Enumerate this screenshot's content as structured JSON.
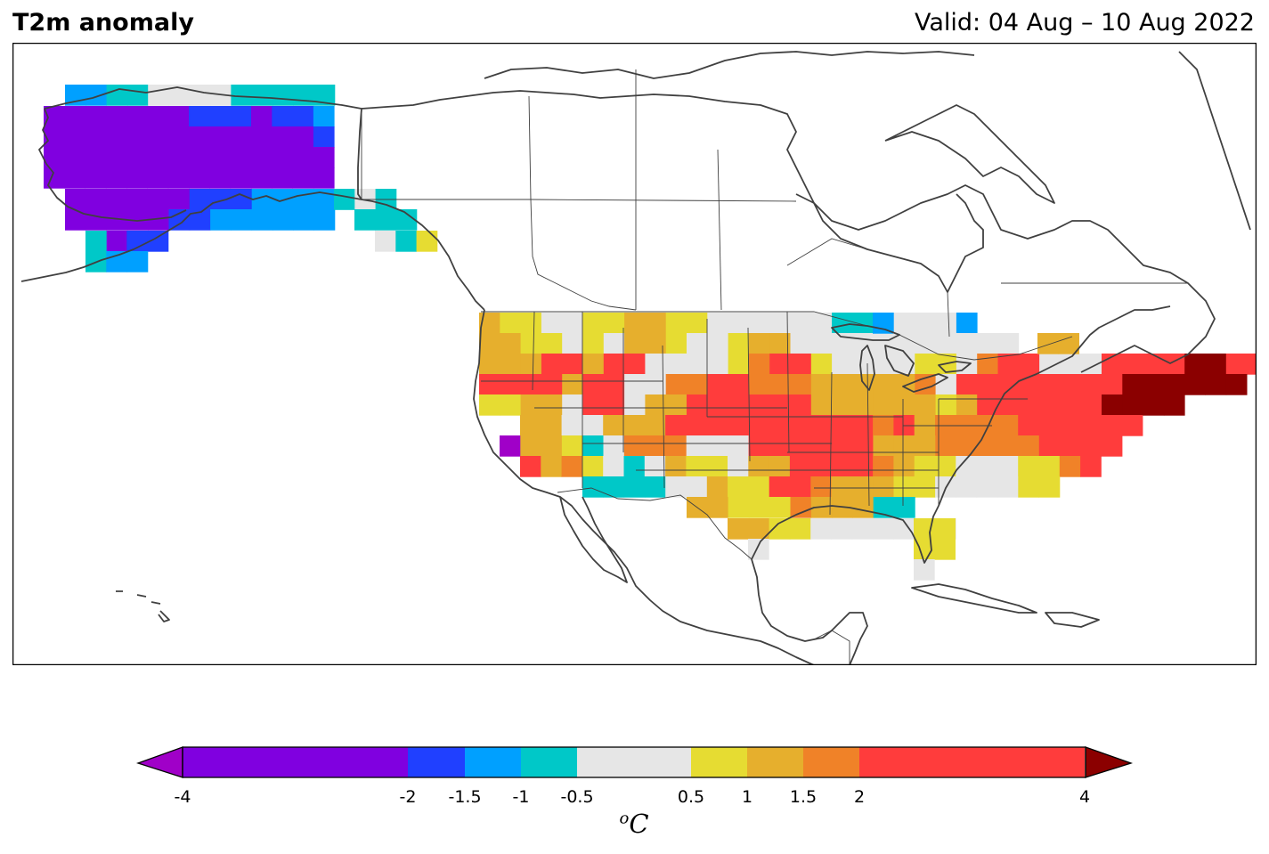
{
  "header": {
    "title": "T2m anomaly",
    "valid": "Valid: 04 Aug – 10 Aug 2022"
  },
  "colorbar": {
    "unit_prefix": "o",
    "unit": "C",
    "ticks": [
      "-4",
      "-2",
      "-1.5",
      "-1",
      "-0.5",
      "0.5",
      "1",
      "1.5",
      "2",
      "4"
    ],
    "bins": [
      {
        "from": -4,
        "to": -2,
        "color": "#8000e0"
      },
      {
        "from": -2,
        "to": -1.5,
        "color": "#2040ff"
      },
      {
        "from": -1.5,
        "to": -1,
        "color": "#00a0ff"
      },
      {
        "from": -1,
        "to": -0.5,
        "color": "#00c8c8"
      },
      {
        "from": -0.5,
        "to": 0.5,
        "color": "#e6e6e6"
      },
      {
        "from": 0.5,
        "to": 1,
        "color": "#e6dc32"
      },
      {
        "from": 1,
        "to": 1.5,
        "color": "#e6af2d"
      },
      {
        "from": 1.5,
        "to": 2,
        "color": "#f08228"
      },
      {
        "from": 2,
        "to": 4,
        "color": "#ff3c3c"
      }
    ],
    "under_color": "#a000c8",
    "over_color": "#8b0000"
  },
  "grid_colors": {
    "V": "#8000e0",
    "U": "#a000c8",
    "B": "#2040ff",
    "A": "#00a0ff",
    "C": "#00c8c8",
    "G": "#e6e6e6",
    "Y": "#e6dc32",
    "O": "#e6af2d",
    "N": "#f08228",
    "R": "#ff3c3c",
    "D": "#8b0000"
  }
}
